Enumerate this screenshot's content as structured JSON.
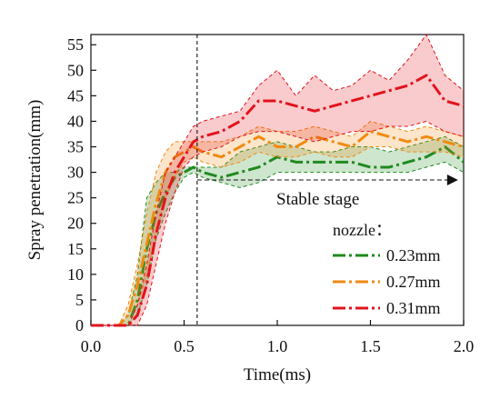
{
  "chart_data": {
    "type": "line",
    "xlabel": "Time(ms)",
    "ylabel": "Spray penetration(mm)",
    "xlim": [
      0.0,
      2.0
    ],
    "ylim": [
      0,
      57
    ],
    "x_ticks": [
      "0.0",
      "0.5",
      "1.0",
      "1.5",
      "2.0"
    ],
    "y_ticks": [
      "0",
      "5",
      "10",
      "15",
      "20",
      "25",
      "30",
      "35",
      "40",
      "45",
      "50",
      "55"
    ],
    "grid": false,
    "legend": {
      "title": "nozzle：",
      "placement": "lower-right"
    },
    "annotation": {
      "text": "Stable stage",
      "vertical_line_x": 0.57,
      "arrow_y": 28.5,
      "arrow_x_start": 0.57,
      "arrow_x_end": 1.97
    },
    "x": [
      0.0,
      0.1,
      0.15,
      0.2,
      0.25,
      0.3,
      0.35,
      0.4,
      0.45,
      0.5,
      0.55,
      0.6,
      0.7,
      0.8,
      0.9,
      1.0,
      1.1,
      1.2,
      1.3,
      1.4,
      1.5,
      1.6,
      1.7,
      1.8,
      1.9,
      2.0
    ],
    "series": [
      {
        "name": "0.23mm",
        "color": "#1f8a1f",
        "values": [
          0,
          0,
          0,
          0,
          5,
          15,
          22,
          26,
          29,
          30,
          31,
          30,
          29,
          30,
          31,
          33,
          32,
          32,
          32,
          32,
          31,
          31,
          32,
          33,
          35,
          32
        ],
        "upper": [
          0,
          0,
          0,
          2,
          10,
          25,
          28,
          30,
          30,
          31,
          31,
          31,
          31,
          34,
          35,
          36,
          35,
          34,
          34,
          35,
          35,
          34,
          35,
          36,
          37,
          35
        ],
        "lower": [
          0,
          0,
          0,
          0,
          2,
          8,
          17,
          22,
          26,
          29,
          30,
          29,
          28,
          27,
          28,
          30,
          30,
          30,
          30,
          30,
          30,
          30,
          30,
          31,
          32,
          30
        ]
      },
      {
        "name": "0.27mm",
        "color": "#f08a10",
        "values": [
          0,
          0,
          0,
          2,
          8,
          16,
          24,
          30,
          33,
          34,
          35,
          34,
          33,
          35,
          37,
          35,
          35,
          37,
          36,
          35,
          38,
          37,
          36,
          37,
          36,
          35
        ],
        "upper": [
          0,
          0,
          0,
          4,
          12,
          22,
          30,
          34,
          36,
          36,
          36,
          36,
          36,
          37,
          39,
          38,
          38,
          39,
          38,
          37,
          40,
          39,
          38,
          39,
          38,
          37
        ],
        "lower": [
          0,
          0,
          0,
          0,
          4,
          10,
          18,
          25,
          29,
          32,
          33,
          32,
          31,
          32,
          34,
          33,
          33,
          34,
          33,
          33,
          35,
          35,
          34,
          34,
          34,
          33
        ]
      },
      {
        "name": "0.31mm",
        "color": "#e2131c",
        "values": [
          0,
          0,
          0,
          0,
          2,
          8,
          18,
          25,
          30,
          33,
          36,
          37,
          38,
          40,
          44,
          44,
          43,
          42,
          43,
          44,
          45,
          46,
          47,
          49,
          44,
          43
        ],
        "upper": [
          0,
          0,
          0,
          0,
          4,
          12,
          22,
          30,
          33,
          36,
          39,
          40,
          41,
          42,
          47,
          50,
          45,
          49,
          46,
          47,
          50,
          48,
          52,
          57,
          49,
          46
        ],
        "lower": [
          0,
          0,
          0,
          0,
          0,
          4,
          12,
          20,
          26,
          31,
          33,
          34,
          35,
          37,
          38,
          38,
          37,
          36,
          37,
          38,
          38,
          39,
          39,
          40,
          38,
          37
        ]
      }
    ]
  }
}
